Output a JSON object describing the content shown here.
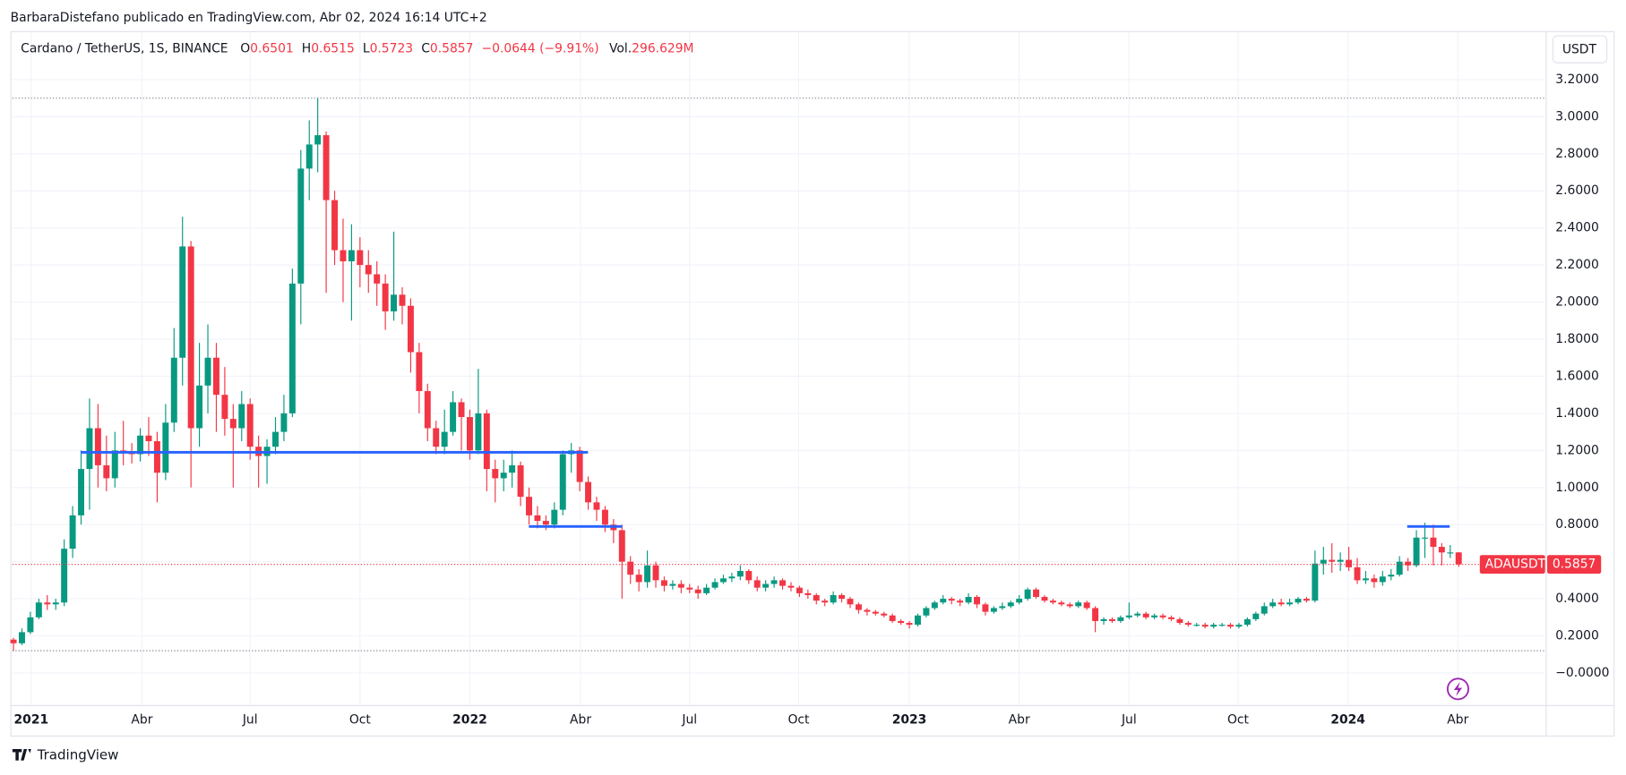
{
  "header": "BarbaraDistefano publicado en TradingView.com, Abr 02, 2024 16:14 UTC+2",
  "branding": "TradingView",
  "chart_data": {
    "type": "candlestick",
    "legend": {
      "symbol": "Cardano / TetherUS, 1S, BINANCE",
      "open_label": "O",
      "high_label": "H",
      "low_label": "L",
      "close_label": "C",
      "change": "−0.0644 (−9.91%)",
      "volume_label": "Vol.",
      "volume": "296.629M"
    },
    "currency": "USDT",
    "symbol_tag": "ADAUSDT",
    "up_color": "#089981",
    "down_color": "#f23645",
    "line_color": "#2962ff",
    "grid": true,
    "ylim": [
      -0.17,
      3.45
    ],
    "yticks": [
      {
        "value": 3.2,
        "label": "3.2000"
      },
      {
        "value": 3.0,
        "label": "3.0000"
      },
      {
        "value": 2.8,
        "label": "2.8000"
      },
      {
        "value": 2.6,
        "label": "2.6000"
      },
      {
        "value": 2.4,
        "label": "2.4000"
      },
      {
        "value": 2.2,
        "label": "2.2000"
      },
      {
        "value": 2.0,
        "label": "2.0000"
      },
      {
        "value": 1.8,
        "label": "1.8000"
      },
      {
        "value": 1.6,
        "label": "1.6000"
      },
      {
        "value": 1.4,
        "label": "1.4000"
      },
      {
        "value": 1.2,
        "label": "1.2000"
      },
      {
        "value": 1.0,
        "label": "1.0000"
      },
      {
        "value": 0.8,
        "label": "0.8000"
      },
      {
        "value": 0.6,
        "label": "0.6000"
      },
      {
        "value": 0.4,
        "label": "0.4000"
      },
      {
        "value": 0.2,
        "label": "0.2000"
      },
      {
        "value": 0,
        "label": "−0.0000"
      }
    ],
    "xticks": [
      {
        "value": 2.1,
        "label": "2021"
      },
      {
        "value": 15.2,
        "label": "Abr"
      },
      {
        "value": 28,
        "label": "Jul"
      },
      {
        "value": 41,
        "label": "Oct"
      },
      {
        "value": 54,
        "label": "2022"
      },
      {
        "value": 67.1,
        "label": "Abr"
      },
      {
        "value": 80,
        "label": "Jul"
      },
      {
        "value": 92.9,
        "label": "Oct"
      },
      {
        "value": 106,
        "label": "2023"
      },
      {
        "value": 119,
        "label": "Abr"
      },
      {
        "value": 132,
        "label": "Jul"
      },
      {
        "value": 144.9,
        "label": "Oct"
      },
      {
        "value": 157.9,
        "label": "2024"
      },
      {
        "value": 170.9,
        "label": "Abr"
      }
    ],
    "hlines": [
      1.19,
      0.79,
      0.79
    ],
    "open": [
      0.18,
      0.16,
      0.22,
      0.3,
      0.38,
      0.37,
      0.38,
      0.67,
      0.85,
      1.1,
      1.32,
      1.12,
      1.05,
      1.2,
      1.19,
      1.18,
      1.28,
      1.25,
      1.08,
      1.35,
      1.7,
      2.3,
      1.32,
      1.55,
      1.7,
      1.5,
      1.37,
      1.32,
      1.45,
      1.22,
      1.17,
      1.22,
      1.3,
      1.4,
      2.1,
      2.72,
      2.85,
      2.9,
      2.55,
      2.28,
      2.22,
      2.28,
      2.2,
      2.15,
      2.1,
      1.95,
      2.04,
      1.98,
      1.73,
      1.52,
      1.32,
      1.22,
      1.3,
      1.46,
      1.38,
      1.2,
      1.4,
      1.1,
      1.05,
      1.08,
      1.12,
      0.95,
      0.85,
      0.82,
      0.8,
      0.88,
      1.18,
      1.2,
      1.03,
      0.92,
      0.88,
      0.8,
      0.77,
      0.6,
      0.53,
      0.49,
      0.58,
      0.5,
      0.47,
      0.48,
      0.46,
      0.45,
      0.43,
      0.46,
      0.49,
      0.51,
      0.52,
      0.55,
      0.5,
      0.46,
      0.48,
      0.5,
      0.47,
      0.46,
      0.43,
      0.42,
      0.39,
      0.38,
      0.42,
      0.4,
      0.37,
      0.34,
      0.33,
      0.32,
      0.31,
      0.28,
      0.27,
      0.26,
      0.31,
      0.35,
      0.38,
      0.4,
      0.39,
      0.38,
      0.41,
      0.37,
      0.33,
      0.35,
      0.36,
      0.38,
      0.4,
      0.45,
      0.41,
      0.39,
      0.38,
      0.37,
      0.36,
      0.38,
      0.35,
      0.28,
      0.29,
      0.28,
      0.3,
      0.31,
      0.32,
      0.3,
      0.31,
      0.3,
      0.29,
      0.27,
      0.26,
      0.26,
      0.25,
      0.26,
      0.26,
      0.25,
      0.26,
      0.29,
      0.32,
      0.36,
      0.38,
      0.37,
      0.38,
      0.4,
      0.39,
      0.59,
      0.61,
      0.6,
      0.61,
      0.57,
      0.5,
      0.51,
      0.49,
      0.52,
      0.53,
      0.6,
      0.58,
      0.73,
      0.73,
      0.68,
      0.65,
      0.6501
    ],
    "high": [
      0.19,
      0.24,
      0.33,
      0.4,
      0.42,
      0.4,
      0.72,
      0.9,
      1.2,
      1.48,
      1.45,
      1.28,
      1.3,
      1.36,
      1.24,
      1.32,
      1.38,
      1.3,
      1.45,
      1.86,
      2.46,
      2.33,
      1.78,
      1.88,
      1.78,
      1.65,
      1.45,
      1.52,
      1.48,
      1.28,
      1.26,
      1.38,
      1.5,
      2.18,
      2.82,
      2.98,
      3.1,
      2.92,
      2.6,
      2.45,
      2.42,
      2.35,
      2.28,
      2.22,
      2.15,
      2.38,
      2.08,
      2.02,
      1.78,
      1.56,
      1.36,
      1.42,
      1.52,
      1.48,
      1.42,
      1.64,
      1.42,
      1.15,
      1.15,
      1.2,
      1.14,
      1.0,
      0.9,
      0.85,
      0.92,
      1.2,
      1.24,
      1.22,
      1.06,
      0.95,
      0.9,
      0.83,
      0.8,
      0.63,
      0.56,
      0.66,
      0.6,
      0.52,
      0.5,
      0.5,
      0.48,
      0.47,
      0.48,
      0.51,
      0.53,
      0.54,
      0.58,
      0.56,
      0.52,
      0.5,
      0.52,
      0.51,
      0.49,
      0.47,
      0.45,
      0.43,
      0.4,
      0.44,
      0.43,
      0.41,
      0.38,
      0.35,
      0.34,
      0.33,
      0.32,
      0.29,
      0.28,
      0.32,
      0.36,
      0.39,
      0.42,
      0.41,
      0.4,
      0.43,
      0.42,
      0.38,
      0.36,
      0.38,
      0.39,
      0.42,
      0.46,
      0.46,
      0.42,
      0.4,
      0.39,
      0.38,
      0.39,
      0.39,
      0.36,
      0.3,
      0.3,
      0.31,
      0.38,
      0.33,
      0.33,
      0.32,
      0.32,
      0.31,
      0.3,
      0.28,
      0.27,
      0.27,
      0.27,
      0.27,
      0.27,
      0.27,
      0.3,
      0.33,
      0.38,
      0.4,
      0.4,
      0.4,
      0.41,
      0.41,
      0.66,
      0.68,
      0.7,
      0.65,
      0.68,
      0.62,
      0.55,
      0.53,
      0.55,
      0.56,
      0.63,
      0.62,
      0.77,
      0.81,
      0.8,
      0.7,
      0.69,
      0.6515
    ],
    "low": [
      0.12,
      0.15,
      0.21,
      0.29,
      0.34,
      0.34,
      0.36,
      0.62,
      0.8,
      0.88,
      1.0,
      0.98,
      1.0,
      1.12,
      1.13,
      1.14,
      1.17,
      0.92,
      1.04,
      1.3,
      1.55,
      1.0,
      1.22,
      1.4,
      1.3,
      1.28,
      1.0,
      1.25,
      1.15,
      1.0,
      1.02,
      1.18,
      1.25,
      1.38,
      1.88,
      2.55,
      2.7,
      2.05,
      2.2,
      2.0,
      1.9,
      2.08,
      2.05,
      1.98,
      1.85,
      1.9,
      1.88,
      1.62,
      1.4,
      1.25,
      1.18,
      1.18,
      1.28,
      1.2,
      1.15,
      1.18,
      0.98,
      0.92,
      0.98,
      1.0,
      0.9,
      0.8,
      0.78,
      0.77,
      0.78,
      0.85,
      1.08,
      0.98,
      0.88,
      0.82,
      0.76,
      0.7,
      0.4,
      0.48,
      0.44,
      0.46,
      0.46,
      0.44,
      0.45,
      0.43,
      0.43,
      0.4,
      0.42,
      0.45,
      0.48,
      0.49,
      0.5,
      0.48,
      0.44,
      0.44,
      0.46,
      0.45,
      0.44,
      0.41,
      0.4,
      0.37,
      0.36,
      0.37,
      0.38,
      0.35,
      0.32,
      0.31,
      0.31,
      0.3,
      0.27,
      0.26,
      0.24,
      0.25,
      0.3,
      0.34,
      0.37,
      0.37,
      0.36,
      0.37,
      0.35,
      0.31,
      0.32,
      0.34,
      0.35,
      0.37,
      0.39,
      0.4,
      0.38,
      0.37,
      0.36,
      0.35,
      0.35,
      0.34,
      0.22,
      0.26,
      0.27,
      0.27,
      0.29,
      0.3,
      0.29,
      0.29,
      0.29,
      0.28,
      0.26,
      0.25,
      0.25,
      0.24,
      0.24,
      0.25,
      0.24,
      0.24,
      0.25,
      0.28,
      0.31,
      0.35,
      0.36,
      0.36,
      0.37,
      0.38,
      0.38,
      0.53,
      0.54,
      0.55,
      0.55,
      0.48,
      0.48,
      0.46,
      0.47,
      0.5,
      0.52,
      0.55,
      0.57,
      0.62,
      0.58,
      0.58,
      0.62,
      0.5723
    ],
    "close": [
      0.16,
      0.22,
      0.3,
      0.38,
      0.37,
      0.38,
      0.67,
      0.85,
      1.1,
      1.32,
      1.12,
      1.05,
      1.2,
      1.19,
      1.18,
      1.28,
      1.25,
      1.08,
      1.35,
      1.7,
      2.3,
      1.32,
      1.55,
      1.7,
      1.5,
      1.37,
      1.32,
      1.45,
      1.22,
      1.17,
      1.22,
      1.3,
      1.4,
      2.1,
      2.72,
      2.85,
      2.9,
      2.55,
      2.28,
      2.22,
      2.28,
      2.2,
      2.15,
      2.1,
      1.95,
      2.04,
      1.98,
      1.73,
      1.52,
      1.32,
      1.22,
      1.3,
      1.46,
      1.38,
      1.2,
      1.4,
      1.1,
      1.05,
      1.08,
      1.12,
      0.95,
      0.85,
      0.82,
      0.8,
      0.88,
      1.18,
      1.2,
      1.03,
      0.92,
      0.88,
      0.8,
      0.77,
      0.6,
      0.53,
      0.49,
      0.58,
      0.5,
      0.47,
      0.48,
      0.46,
      0.45,
      0.43,
      0.46,
      0.49,
      0.51,
      0.52,
      0.55,
      0.5,
      0.46,
      0.48,
      0.5,
      0.47,
      0.46,
      0.43,
      0.42,
      0.39,
      0.38,
      0.42,
      0.4,
      0.37,
      0.34,
      0.33,
      0.32,
      0.31,
      0.28,
      0.27,
      0.26,
      0.31,
      0.35,
      0.38,
      0.4,
      0.39,
      0.38,
      0.41,
      0.37,
      0.33,
      0.35,
      0.36,
      0.38,
      0.4,
      0.45,
      0.41,
      0.39,
      0.38,
      0.37,
      0.36,
      0.38,
      0.35,
      0.28,
      0.29,
      0.28,
      0.3,
      0.31,
      0.32,
      0.3,
      0.31,
      0.3,
      0.29,
      0.27,
      0.26,
      0.26,
      0.25,
      0.26,
      0.26,
      0.25,
      0.26,
      0.29,
      0.32,
      0.36,
      0.38,
      0.37,
      0.38,
      0.4,
      0.39,
      0.59,
      0.61,
      0.6,
      0.61,
      0.57,
      0.5,
      0.51,
      0.49,
      0.52,
      0.53,
      0.6,
      0.58,
      0.73,
      0.73,
      0.68,
      0.65,
      0.65,
      0.5857
    ]
  }
}
